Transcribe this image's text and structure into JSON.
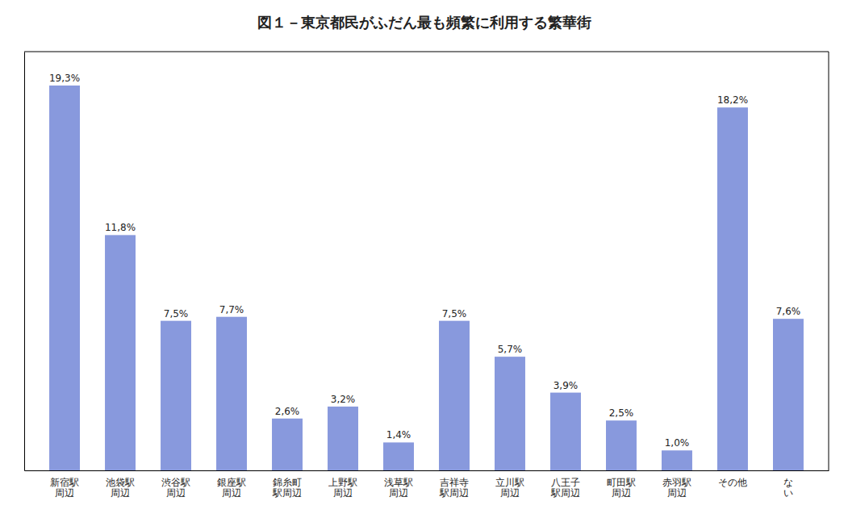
{
  "chart_data": {
    "type": "bar",
    "title": "図１－東京都民がふだん最も頻繁に利用する繁華街",
    "categories": [
      "新宿駅\n周辺",
      "池袋駅\n周辺",
      "渋谷駅\n周辺",
      "銀座駅\n周辺",
      "錦糸町\n駅周辺",
      "上野駅\n周辺",
      "浅草駅\n周辺",
      "吉祥寺\n駅周辺",
      "立川駅\n周辺",
      "八王子\n駅周辺",
      "町田駅\n周辺",
      "赤羽駅\n周辺",
      "その他",
      "な\nい"
    ],
    "values": [
      19.3,
      11.8,
      7.5,
      7.7,
      2.6,
      3.2,
      1.4,
      7.5,
      5.7,
      3.9,
      2.5,
      1.0,
      18.2,
      7.6
    ],
    "value_labels": [
      "19,3%",
      "11,8%",
      "7,5%",
      "7,7%",
      "2,6%",
      "3,2%",
      "1,4%",
      "7,5%",
      "5,7%",
      "3,9%",
      "2,5%",
      "1,0%",
      "18,2%",
      "7,6%"
    ],
    "data_labels": true,
    "color": "#8899dd",
    "ylim": [
      0,
      21
    ],
    "grid": false,
    "tick_labels": "x"
  }
}
